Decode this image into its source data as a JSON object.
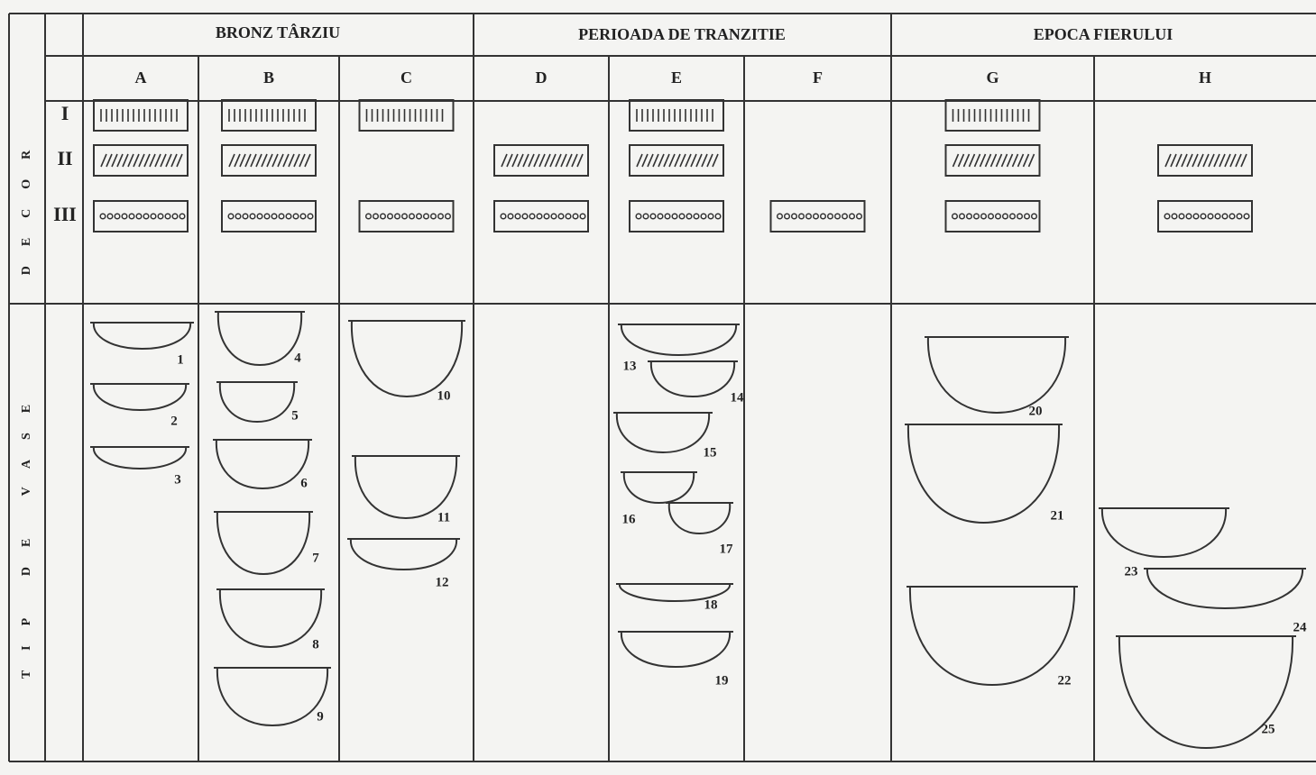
{
  "side_labels": [
    "DECOR",
    "TIP DE VASE"
  ],
  "periods": [
    "BRONZ TÂRZIU",
    "PERIOADA DE TRANZITIE",
    "EPOCA FIERULUI"
  ],
  "columns": [
    "A",
    "B",
    "C",
    "D",
    "E",
    "F",
    "G",
    "H"
  ],
  "decor_rows": [
    "I",
    "II",
    "III"
  ],
  "vessels": [
    "1",
    "2",
    "3",
    "4",
    "5",
    "6",
    "7",
    "8",
    "9",
    "10",
    "11",
    "12",
    "13",
    "14",
    "15",
    "16",
    "17",
    "18",
    "19",
    "20",
    "21",
    "22",
    "23",
    "24",
    "25"
  ]
}
